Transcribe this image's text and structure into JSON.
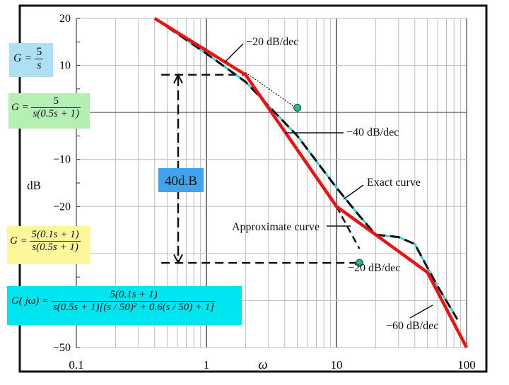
{
  "chart_data": {
    "type": "line",
    "title": "",
    "xlabel": "ω",
    "ylabel": "dB",
    "xscale": "log",
    "xlim": [
      0.1,
      100
    ],
    "ylim": [
      -50,
      20
    ],
    "x_ticks": [
      "0.1",
      "1",
      "10",
      "100"
    ],
    "y_ticks": [
      "20",
      "10",
      "0",
      "−10",
      "−20",
      "−30",
      "−40",
      "−50"
    ],
    "series": [
      {
        "name": "Approximate curve",
        "color": "#ee1111",
        "points": [
          [
            0.4,
            20
          ],
          [
            2.0,
            8
          ],
          [
            10,
            -20
          ],
          [
            20,
            -26
          ],
          [
            50,
            -34
          ],
          [
            100,
            -50
          ]
        ]
      },
      {
        "name": "Exact curve",
        "color": "#111111",
        "accent": "#39d2dc",
        "points": [
          [
            0.4,
            20
          ],
          [
            1.0,
            12.5
          ],
          [
            2.0,
            6.5
          ],
          [
            5,
            -5
          ],
          [
            10,
            -16
          ],
          [
            15,
            -22
          ],
          [
            20,
            -26
          ],
          [
            30,
            -26.5
          ],
          [
            40,
            -28
          ],
          [
            50,
            -33
          ],
          [
            60,
            -37
          ],
          [
            85,
            -44
          ]
        ]
      },
      {
        "name": "−40 dB/dec extension",
        "color": "#111111",
        "points": [
          [
            10,
            -20
          ],
          [
            15,
            -29
          ]
        ]
      }
    ],
    "reference_lines": [
      {
        "name": "upper",
        "y": 8,
        "x_from": 0.45,
        "x_to": 2.0
      },
      {
        "name": "lower",
        "y": -32,
        "x_from": 0.45,
        "x_to": 15
      }
    ],
    "gap_label": "40d.B",
    "marker_points": [
      [
        5,
        1
      ],
      [
        15,
        -32
      ]
    ],
    "annotations": [
      "−20 dB/dec",
      "−40 dB/dec",
      "Exact curve",
      "Approximate curve",
      "−20 dB/dec",
      "−60 dB/dec"
    ]
  },
  "formulas": {
    "g1": {
      "lhs": "G =",
      "num": "5",
      "den": "s"
    },
    "g2": {
      "lhs": "G =",
      "num": "5",
      "den": "s(0.5s + 1)"
    },
    "g3": {
      "lhs": "G =",
      "num": "5(0.1s + 1)",
      "den": "s(0.5s + 1)"
    },
    "g4": {
      "lhs": "G( jω) =",
      "num": "5(0.1s + 1)",
      "den": "s(0.5s + 1)[(s / 50)² + 0.6(s / 50) + 1]"
    }
  },
  "colors": {
    "approximate": "#ee1111",
    "exact": "#111111",
    "exact_accent": "#39d2dc",
    "marker": "#2db87a",
    "gap_label_bg": "#3fa3ee",
    "grid": "#bdbdbd",
    "frame": "#111111"
  }
}
